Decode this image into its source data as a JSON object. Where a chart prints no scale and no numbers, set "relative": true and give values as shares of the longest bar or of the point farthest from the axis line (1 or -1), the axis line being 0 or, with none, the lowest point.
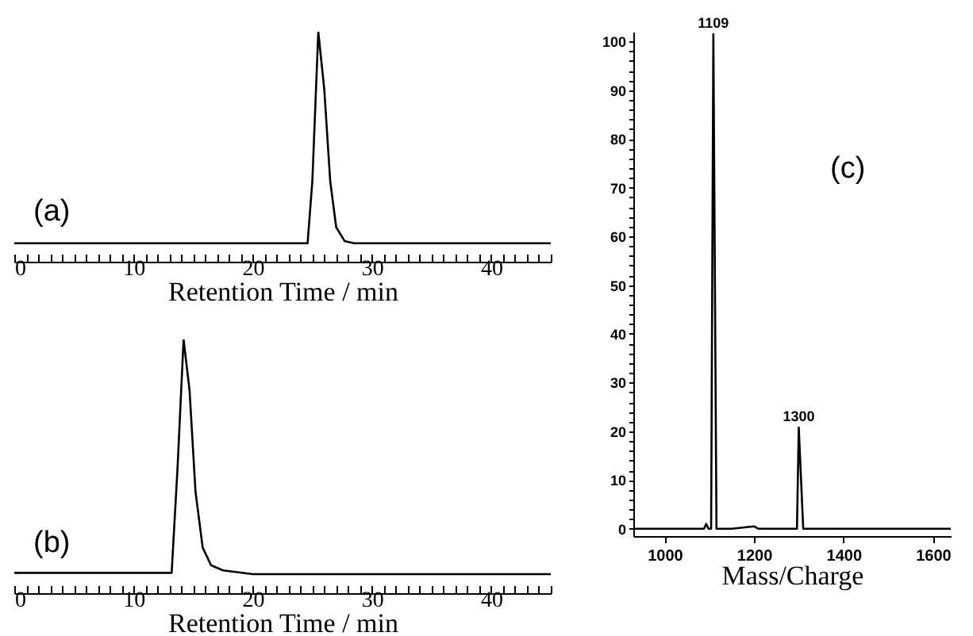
{
  "chart_data": [
    {
      "type": "line",
      "relative": true,
      "tick_labels": "x",
      "xlabel": "Retention Time / min",
      "annotations": [
        "(a)"
      ],
      "xlim": [
        0,
        45
      ],
      "xticks": [
        0,
        {
          "value": 1,
          "label": null
        },
        {
          "value": 2,
          "label": null
        },
        {
          "value": 3,
          "label": null
        },
        {
          "value": 4,
          "label": null
        },
        {
          "value": 5,
          "label": null
        },
        {
          "value": 6,
          "label": null
        },
        {
          "value": 7,
          "label": null
        },
        {
          "value": 8,
          "label": null
        },
        {
          "value": 9,
          "label": null
        },
        10,
        {
          "value": 11,
          "label": null
        },
        {
          "value": 12,
          "label": null
        },
        {
          "value": 13,
          "label": null
        },
        {
          "value": 14,
          "label": null
        },
        {
          "value": 15,
          "label": null
        },
        {
          "value": 16,
          "label": null
        },
        {
          "value": 17,
          "label": null
        },
        {
          "value": 18,
          "label": null
        },
        {
          "value": 19,
          "label": null
        },
        20,
        {
          "value": 21,
          "label": null
        },
        {
          "value": 22,
          "label": null
        },
        {
          "value": 23,
          "label": null
        },
        {
          "value": 24,
          "label": null
        },
        {
          "value": 25,
          "label": null
        },
        {
          "value": 26,
          "label": null
        },
        {
          "value": 27,
          "label": null
        },
        {
          "value": 28,
          "label": null
        },
        {
          "value": 29,
          "label": null
        },
        30,
        {
          "value": 31,
          "label": null
        },
        {
          "value": 32,
          "label": null
        },
        {
          "value": 33,
          "label": null
        },
        {
          "value": 34,
          "label": null
        },
        {
          "value": 35,
          "label": null
        },
        {
          "value": 36,
          "label": null
        },
        {
          "value": 37,
          "label": null
        },
        {
          "value": 38,
          "label": null
        },
        {
          "value": 39,
          "label": null
        },
        40,
        {
          "value": 41,
          "label": null
        },
        {
          "value": 42,
          "label": null
        },
        {
          "value": 43,
          "label": null
        },
        {
          "value": 44,
          "label": null
        },
        {
          "value": 45,
          "label": null
        }
      ],
      "series": [
        {
          "color": "#000000",
          "x": [
            0,
            24.6,
            25.0,
            25.5,
            26.0,
            26.5,
            27.0,
            27.7,
            28.5,
            45
          ],
          "values": [
            0.08,
            0.08,
            0.35,
            1,
            0.75,
            0.35,
            0.15,
            0.09,
            0.08,
            0.08
          ]
        }
      ]
    },
    {
      "type": "line",
      "relative": true,
      "tick_labels": "x",
      "xlabel": "Retention Time / min",
      "annotations": [
        "(b)"
      ],
      "xlim": [
        0,
        45
      ],
      "xticks": [
        0,
        {
          "value": 1,
          "label": null
        },
        {
          "value": 2,
          "label": null
        },
        {
          "value": 3,
          "label": null
        },
        {
          "value": 4,
          "label": null
        },
        {
          "value": 5,
          "label": null
        },
        {
          "value": 6,
          "label": null
        },
        {
          "value": 7,
          "label": null
        },
        {
          "value": 8,
          "label": null
        },
        {
          "value": 9,
          "label": null
        },
        10,
        {
          "value": 11,
          "label": null
        },
        {
          "value": 12,
          "label": null
        },
        {
          "value": 13,
          "label": null
        },
        {
          "value": 14,
          "label": null
        },
        {
          "value": 15,
          "label": null
        },
        {
          "value": 16,
          "label": null
        },
        {
          "value": 17,
          "label": null
        },
        {
          "value": 18,
          "label": null
        },
        {
          "value": 19,
          "label": null
        },
        20,
        {
          "value": 21,
          "label": null
        },
        {
          "value": 22,
          "label": null
        },
        {
          "value": 23,
          "label": null
        },
        {
          "value": 24,
          "label": null
        },
        {
          "value": 25,
          "label": null
        },
        {
          "value": 26,
          "label": null
        },
        {
          "value": 27,
          "label": null
        },
        {
          "value": 28,
          "label": null
        },
        {
          "value": 29,
          "label": null
        },
        30,
        {
          "value": 31,
          "label": null
        },
        {
          "value": 32,
          "label": null
        },
        {
          "value": 33,
          "label": null
        },
        {
          "value": 34,
          "label": null
        },
        {
          "value": 35,
          "label": null
        },
        {
          "value": 36,
          "label": null
        },
        {
          "value": 37,
          "label": null
        },
        {
          "value": 38,
          "label": null
        },
        {
          "value": 39,
          "label": null
        },
        40,
        {
          "value": 41,
          "label": null
        },
        {
          "value": 42,
          "label": null
        },
        {
          "value": 43,
          "label": null
        },
        {
          "value": 44,
          "label": null
        },
        {
          "value": 45,
          "label": null
        }
      ],
      "series": [
        {
          "color": "#000000",
          "x": [
            0,
            13.2,
            13.7,
            14.2,
            14.7,
            15.2,
            15.8,
            16.5,
            17.5,
            20,
            45
          ],
          "values": [
            0.08,
            0.08,
            0.5,
            1,
            0.8,
            0.4,
            0.18,
            0.11,
            0.09,
            0.075,
            0.075
          ]
        }
      ]
    },
    {
      "type": "line",
      "xlabel": "Mass/Charge",
      "xlim": [
        930,
        1640
      ],
      "xticks": [
        1000,
        1200,
        1400,
        1600
      ],
      "ylim": [
        -1.5,
        102
      ],
      "yticks": [
        0,
        {
          "value": 2,
          "label": null
        },
        {
          "value": 4,
          "label": null
        },
        {
          "value": 6,
          "label": null
        },
        {
          "value": 8,
          "label": null
        },
        10,
        {
          "value": 12,
          "label": null
        },
        {
          "value": 14,
          "label": null
        },
        {
          "value": 16,
          "label": null
        },
        {
          "value": 18,
          "label": null
        },
        20,
        {
          "value": 22,
          "label": null
        },
        {
          "value": 24,
          "label": null
        },
        {
          "value": 26,
          "label": null
        },
        {
          "value": 28,
          "label": null
        },
        30,
        {
          "value": 32,
          "label": null
        },
        {
          "value": 34,
          "label": null
        },
        {
          "value": 36,
          "label": null
        },
        {
          "value": 38,
          "label": null
        },
        40,
        {
          "value": 42,
          "label": null
        },
        {
          "value": 44,
          "label": null
        },
        {
          "value": 46,
          "label": null
        },
        {
          "value": 48,
          "label": null
        },
        50,
        {
          "value": 52,
          "label": null
        },
        {
          "value": 54,
          "label": null
        },
        {
          "value": 56,
          "label": null
        },
        {
          "value": 58,
          "label": null
        },
        60,
        {
          "value": 62,
          "label": null
        },
        {
          "value": 64,
          "label": null
        },
        {
          "value": 66,
          "label": null
        },
        {
          "value": 68,
          "label": null
        },
        70,
        {
          "value": 72,
          "label": null
        },
        {
          "value": 74,
          "label": null
        },
        {
          "value": 76,
          "label": null
        },
        {
          "value": 78,
          "label": null
        },
        80,
        {
          "value": 82,
          "label": null
        },
        {
          "value": 84,
          "label": null
        },
        {
          "value": 86,
          "label": null
        },
        {
          "value": 88,
          "label": null
        },
        90,
        {
          "value": 92,
          "label": null
        },
        {
          "value": 94,
          "label": null
        },
        {
          "value": 96,
          "label": null
        },
        {
          "value": 98,
          "label": null
        },
        100
      ],
      "annotations": [
        "(c)",
        {
          "text": "1109",
          "x": 1109,
          "y": 101.5
        },
        {
          "text": "1300",
          "x": 1300,
          "y": 20.8
        }
      ],
      "series": [
        {
          "color": "#000000",
          "x": [
            930,
            1088,
            1093,
            1098,
            1104,
            1109,
            1116,
            1150,
            1200,
            1210,
            1296,
            1300,
            1310,
            1640
          ],
          "values": [
            0,
            0,
            1,
            0,
            0,
            101.5,
            0,
            0,
            0.5,
            0,
            0,
            20.8,
            0,
            0
          ]
        }
      ]
    }
  ]
}
